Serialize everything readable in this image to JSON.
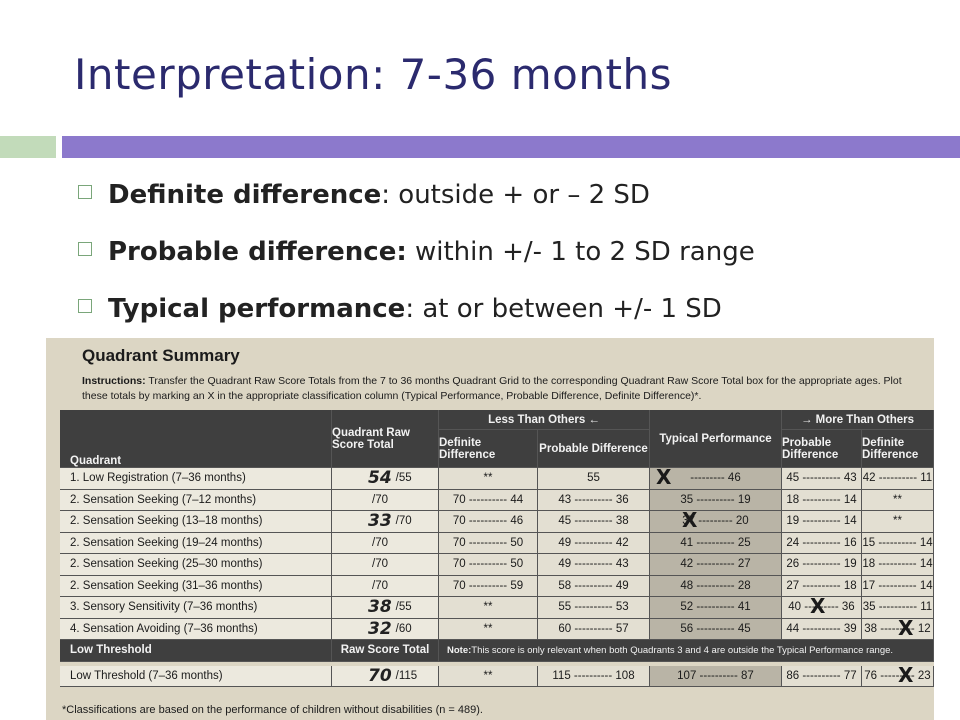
{
  "slide": {
    "title": "Interpretation: 7-36 months",
    "bullets": [
      {
        "term": "Definite difference",
        "text": ": outside + or – 2 SD"
      },
      {
        "term": "Probable difference:",
        "text": " within +/- 1 to 2 SD range"
      },
      {
        "term": "Typical performance",
        "text": ": at or between +/- 1 SD"
      }
    ]
  },
  "photo": {
    "title": "Quadrant Summary",
    "instructions_label": "Instructions:",
    "instructions_text": " Transfer the Quadrant Raw Score Totals from the 7 to 36 months Quadrant Grid to the corresponding Quadrant Raw Score Total box for the appropriate ages. Plot these totals by marking an X in the appropriate classification column (Typical Performance, Probable Difference, Definite Difference)*.",
    "headers": {
      "quadrant": "Quadrant",
      "raw": "Quadrant Raw Score Total",
      "less": "Less Than Others ←",
      "more": "→ More Than Others",
      "definite": "Definite Difference",
      "probable": "Probable Difference",
      "typical": "Typical Performance"
    },
    "rows": [
      {
        "label": "1. Low Registration (7–36 months)",
        "score": "54",
        "max": "/55",
        "c1": "**",
        "c2": "55",
        "c3": "--------- 46",
        "c4": "45 ---------- 43",
        "c5": "42 ---------- 11"
      },
      {
        "label": "2. Sensation Seeking (7–12 months)",
        "score": "",
        "max": "/70",
        "c1": "70 ---------- 44",
        "c2": "43 ---------- 36",
        "c3": "35 ---------- 19",
        "c4": "18 ---------- 14",
        "c5": "**"
      },
      {
        "label": "2. Sensation Seeking (13–18 months)",
        "score": "33",
        "max": "/70",
        "c1": "70 ---------- 46",
        "c2": "45 ---------- 38",
        "c3": "37 --------- 20",
        "c4": "19 ---------- 14",
        "c5": "**"
      },
      {
        "label": "2. Sensation Seeking (19–24 months)",
        "score": "",
        "max": "/70",
        "c1": "70 ---------- 50",
        "c2": "49 ---------- 42",
        "c3": "41 ---------- 25",
        "c4": "24 ---------- 16",
        "c5": "15 ---------- 14"
      },
      {
        "label": "2. Sensation Seeking (25–30 months)",
        "score": "",
        "max": "/70",
        "c1": "70 ---------- 50",
        "c2": "49 ---------- 43",
        "c3": "42 ---------- 27",
        "c4": "26 ---------- 19",
        "c5": "18 ---------- 14"
      },
      {
        "label": "2. Sensation Seeking (31–36 months)",
        "score": "",
        "max": "/70",
        "c1": "70 ---------- 59",
        "c2": "58 ---------- 49",
        "c3": "48 ---------- 28",
        "c4": "27 ---------- 18",
        "c5": "17 ---------- 14"
      },
      {
        "label": "3. Sensory Sensitivity (7–36 months)",
        "score": "38",
        "max": "/55",
        "c1": "**",
        "c2": "55 ---------- 53",
        "c3": "52 ---------- 41",
        "c4": "40 --------- 36",
        "c5": "35 ---------- 11"
      },
      {
        "label": "4. Sensation Avoiding (7–36 months)",
        "score": "32",
        "max": "/60",
        "c1": "**",
        "c2": "60 ---------- 57",
        "c3": "56 ---------- 45",
        "c4": "44 ---------- 39",
        "c5": "38 --------- 12"
      }
    ],
    "low_threshold_header": "Low Threshold",
    "raw_score_total_header": "Raw Score Total",
    "note_label": "Note:",
    "note_text": " This score is only relevant when both Quadrants 3 and 4 are outside the Typical Performance range.",
    "lt_row": {
      "label": "Low Threshold (7–36 months)",
      "score": "70",
      "max": "/115",
      "c1": "**",
      "c2": "115 ---------- 108",
      "c3": "107 ---------- 87",
      "c4": "86 ---------- 77",
      "c5": "76 --------- 23"
    },
    "mark": "X",
    "footnote": "*Classifications are based on the performance of children without disabilities (n = 489)."
  }
}
